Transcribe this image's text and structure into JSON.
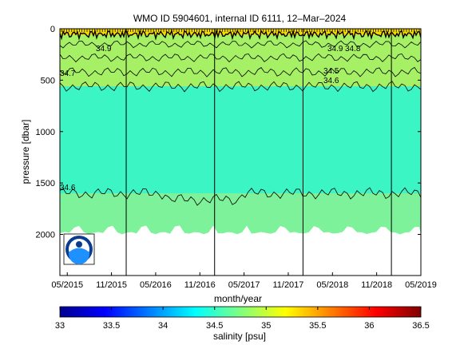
{
  "chart_data": {
    "type": "heatmap",
    "title": "WMO ID 5904601, internal ID 6111, 12–Mar–2024",
    "xlabel": "month/year",
    "ylabel": "pressure [dbar]",
    "xlim": [
      "2015-04",
      "2019-05"
    ],
    "ylim": [
      2400,
      0
    ],
    "x_ticks": [
      "05/2015",
      "11/2015",
      "05/2016",
      "11/2016",
      "05/2017",
      "11/2017",
      "05/2018",
      "11/2018",
      "05/2019"
    ],
    "y_ticks": [
      0,
      500,
      1000,
      1500,
      2000
    ],
    "colorbar": {
      "label": "salinity [psu]",
      "range": [
        33,
        36.5
      ],
      "ticks": [
        "33",
        "33.5",
        "34",
        "34.5",
        "35",
        "35.5",
        "36",
        "36.5"
      ]
    },
    "contour_labels": [
      "34.9",
      "34.7",
      "34.9",
      "34.8",
      "34.5",
      "34.6",
      "34.6"
    ],
    "field": {
      "surface_value": 35.1,
      "upper_value": 34.9,
      "mid_value": 34.55,
      "deep_value": 34.7,
      "max_pressure": 2000
    },
    "contour_depths": [
      {
        "level": 34.9,
        "pressure": 150
      },
      {
        "level": 34.8,
        "pressure": 280
      },
      {
        "level": 34.7,
        "pressure": 420
      },
      {
        "level": 34.6,
        "pressure": 560
      },
      {
        "level": 34.6,
        "pressure": 1600
      }
    ],
    "vertical_lines": [
      "2016-01",
      "2017-01",
      "2018-01",
      "2019-01"
    ],
    "logo": "noaa-logo"
  },
  "colors": {
    "surface": "#f5d800",
    "upper": "#a6f065",
    "mid": "#3cf5c4",
    "deep": "#7ef29a",
    "frame": "#000000"
  }
}
